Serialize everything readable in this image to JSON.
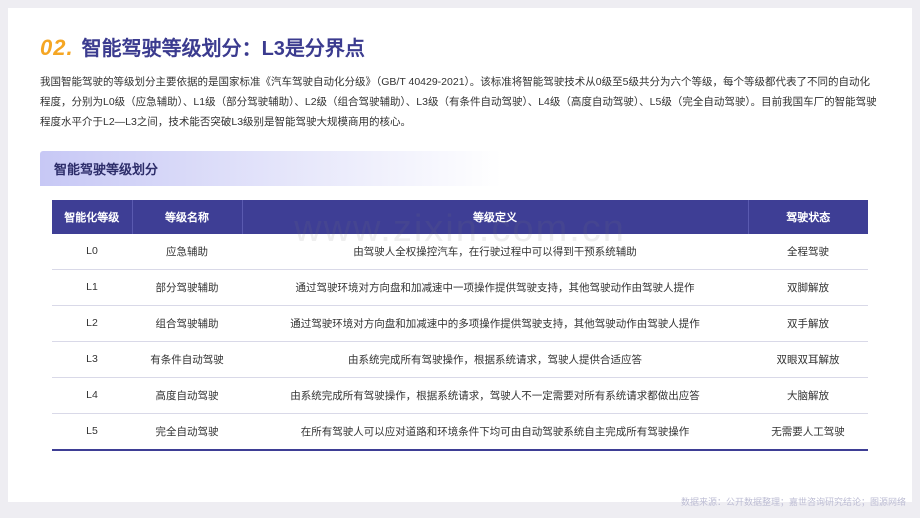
{
  "header": {
    "number": "02.",
    "title": "智能驾驶等级划分：L3是分界点"
  },
  "intro": "我国智能驾驶的等级划分主要依据的是国家标准《汽车驾驶自动化分级》（GB/T 40429-2021）。该标准将智能驾驶技术从0级至5级共分为六个等级，每个等级都代表了不同的自动化程度，分别为L0级（应急辅助）、L1级（部分驾驶辅助）、L2级（组合驾驶辅助）、L3级（有条件自动驾驶）、L4级（高度自动驾驶）、L5级（完全自动驾驶）。目前我国车厂的智能驾驶程度水平介于L2—L3之间，技术能否突破L3级别是智能驾驶大规模商用的核心。",
  "section": {
    "title": "智能驾驶等级划分"
  },
  "table": {
    "columns": [
      "智能化等级",
      "等级名称",
      "等级定义",
      "驾驶状态"
    ],
    "col_widths": [
      "80px",
      "110px",
      "auto",
      "120px"
    ],
    "header_bg": "#3e3e95",
    "header_fg": "#ffffff",
    "row_border": "#d9d9e8",
    "bottom_border": "#3e3e95",
    "rows": [
      {
        "level": "L0",
        "name": "应急辅助",
        "def": "由驾驶人全权操控汽车，在行驶过程中可以得到干预系统辅助",
        "status": "全程驾驶"
      },
      {
        "level": "L1",
        "name": "部分驾驶辅助",
        "def": "通过驾驶环境对方向盘和加减速中一项操作提供驾驶支持，其他驾驶动作由驾驶人提作",
        "status": "双脚解放"
      },
      {
        "level": "L2",
        "name": "组合驾驶辅助",
        "def": "通过驾驶环境对方向盘和加减速中的多项操作提供驾驶支持，其他驾驶动作由驾驶人提作",
        "status": "双手解放"
      },
      {
        "level": "L3",
        "name": "有条件自动驾驶",
        "def": "由系统完成所有驾驶操作，根据系统请求，驾驶人提供合适应答",
        "status": "双眼双耳解放"
      },
      {
        "level": "L4",
        "name": "高度自动驾驶",
        "def": "由系统完成所有驾驶操作，根据系统请求，驾驶人不一定需要对所有系统请求都做出应答",
        "status": "大脑解放"
      },
      {
        "level": "L5",
        "name": "完全自动驾驶",
        "def": "在所有驾驶人可以应对道路和环境条件下均可由自动驾驶系统自主完成所有驾驶操作",
        "status": "无需要人工驾驶"
      }
    ]
  },
  "watermark": "www.zixin.com.cn",
  "footer": "数据来源：公开数据整理；嘉世咨询研究结论；图源网络"
}
